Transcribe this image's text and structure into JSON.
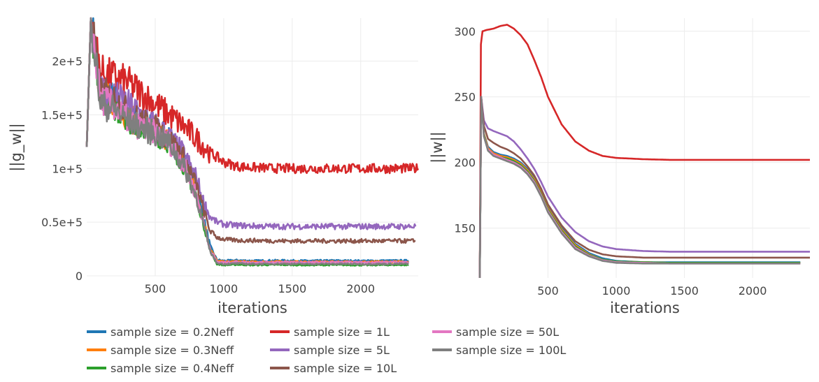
{
  "chart_data": [
    {
      "type": "line",
      "title": "",
      "xlabel": "iterations",
      "ylabel": "||g_w||",
      "xlim": [
        0,
        2420
      ],
      "ylim": [
        0,
        240000
      ],
      "xticks": [
        500,
        1000,
        1500,
        2000
      ],
      "xtick_labels": [
        "500",
        "1000",
        "1500",
        "2000"
      ],
      "yticks": [
        0,
        50000,
        100000,
        150000,
        200000
      ],
      "ytick_labels": [
        "0",
        "0.5e+5",
        "1e+5",
        "1.5e+5",
        "2e+5"
      ],
      "grid": true,
      "series": [
        {
          "name": "sample size = 0.2Neff",
          "color": "#1f77b4",
          "x": [
            0,
            30,
            100,
            200,
            300,
            400,
            500,
            600,
            700,
            800,
            850,
            900,
            950,
            1000,
            1100,
            1200,
            1400,
            1600,
            1800,
            2000,
            2200,
            2350
          ],
          "values": [
            120000,
            240000,
            175000,
            165000,
            150000,
            142000,
            137000,
            128000,
            110000,
            80000,
            55000,
            28000,
            15000,
            14000,
            14500,
            14000,
            14300,
            14000,
            14200,
            14000,
            14100,
            14200
          ]
        },
        {
          "name": "sample size = 0.3Neff",
          "color": "#ff7f0e",
          "x": [
            0,
            30,
            100,
            200,
            300,
            400,
            500,
            600,
            700,
            800,
            850,
            900,
            950,
            1000,
            1100,
            1200,
            1400,
            1600,
            1800,
            2000,
            2200,
            2350
          ],
          "values": [
            120000,
            240000,
            172000,
            162000,
            148000,
            140000,
            135000,
            127000,
            108000,
            78000,
            53000,
            26000,
            14000,
            13000,
            13500,
            13000,
            13300,
            13000,
            13200,
            13000,
            13100,
            13200
          ]
        },
        {
          "name": "sample size = 0.4Neff",
          "color": "#2ca02c",
          "x": [
            0,
            30,
            100,
            200,
            300,
            400,
            500,
            600,
            700,
            800,
            850,
            900,
            950,
            1000,
            1100,
            1200,
            1400,
            1600,
            1800,
            2000,
            2200,
            2350
          ],
          "values": [
            120000,
            240000,
            170000,
            160000,
            146000,
            138000,
            133000,
            125000,
            105000,
            75000,
            50000,
            24000,
            11000,
            10000,
            10500,
            10000,
            10300,
            10000,
            10200,
            10000,
            10100,
            10200
          ]
        },
        {
          "name": "sample size = 1L",
          "color": "#d62728",
          "x": [
            0,
            30,
            100,
            200,
            300,
            400,
            500,
            600,
            700,
            800,
            900,
            1000,
            1100,
            1200,
            1400,
            1600,
            1800,
            2000,
            2200,
            2420
          ],
          "values": [
            120000,
            240000,
            190000,
            185000,
            180000,
            170000,
            160000,
            150000,
            140000,
            128000,
            115000,
            106000,
            102000,
            101000,
            100000,
            100000,
            100000,
            100000,
            100000,
            100000
          ]
        },
        {
          "name": "sample size = 5L",
          "color": "#9467bd",
          "x": [
            0,
            30,
            100,
            200,
            300,
            400,
            500,
            600,
            700,
            800,
            850,
            900,
            950,
            1000,
            1100,
            1200,
            1400,
            1600,
            1800,
            2000,
            2200,
            2400
          ],
          "values": [
            120000,
            240000,
            175000,
            168000,
            160000,
            150000,
            140000,
            130000,
            115000,
            92000,
            70000,
            55000,
            50000,
            48000,
            47000,
            46500,
            46000,
            46000,
            46000,
            46000,
            46000,
            46000
          ]
        },
        {
          "name": "sample size = 10L",
          "color": "#8c564b",
          "x": [
            0,
            30,
            100,
            200,
            300,
            400,
            500,
            600,
            700,
            800,
            850,
            900,
            950,
            1000,
            1100,
            1200,
            1400,
            1600,
            1800,
            2000,
            2200,
            2400
          ],
          "values": [
            120000,
            240000,
            172000,
            165000,
            152000,
            144000,
            138000,
            128000,
            112000,
            85000,
            62000,
            42000,
            36000,
            34000,
            33000,
            33000,
            32500,
            32500,
            32500,
            32500,
            32500,
            32500
          ]
        },
        {
          "name": "sample size = 50L",
          "color": "#e377c2",
          "x": [
            0,
            30,
            100,
            200,
            300,
            400,
            500,
            600,
            700,
            800,
            850,
            900,
            950,
            1000,
            1100,
            1200,
            1400,
            1600,
            1800,
            2000,
            2200,
            2350
          ],
          "values": [
            120000,
            240000,
            165000,
            158000,
            145000,
            138000,
            133000,
            125000,
            106000,
            76000,
            51000,
            25000,
            13000,
            12500,
            13000,
            12500,
            12800,
            12500,
            12700,
            12500,
            12600,
            12700
          ]
        },
        {
          "name": "sample size = 100L",
          "color": "#7f7f7f",
          "x": [
            0,
            30,
            100,
            200,
            300,
            400,
            500,
            600,
            700,
            800,
            850,
            900,
            950,
            1000,
            1100,
            1200,
            1400,
            1600,
            1800,
            2000,
            2200,
            2350
          ],
          "values": [
            120000,
            240000,
            160000,
            155000,
            145000,
            138000,
            132000,
            124000,
            104000,
            74000,
            49000,
            23000,
            12000,
            11000,
            11500,
            11000,
            11300,
            11000,
            11200,
            11000,
            11100,
            11200
          ]
        }
      ]
    },
    {
      "type": "line",
      "title": "",
      "xlabel": "iterations",
      "ylabel": "||w||",
      "xlim": [
        0,
        2420
      ],
      "ylim": [
        112,
        310
      ],
      "xticks": [
        500,
        1000,
        1500,
        2000
      ],
      "xtick_labels": [
        "500",
        "1000",
        "1500",
        "2000"
      ],
      "yticks": [
        150,
        200,
        250,
        300
      ],
      "ytick_labels": [
        "150",
        "200",
        "250",
        "300"
      ],
      "grid": true,
      "series": [
        {
          "name": "sample size = 0.2Neff",
          "color": "#1f77b4",
          "x": [
            0,
            10,
            30,
            60,
            100,
            150,
            200,
            250,
            300,
            350,
            400,
            450,
            500,
            600,
            700,
            800,
            900,
            1000,
            1200,
            1400,
            1600,
            1800,
            2000,
            2200,
            2350
          ],
          "values": [
            112,
            250,
            222,
            212,
            208,
            206,
            205,
            203,
            200,
            195,
            188,
            178,
            166,
            150,
            138,
            131,
            127,
            125,
            124,
            124,
            124,
            124,
            124,
            124,
            124
          ]
        },
        {
          "name": "sample size = 0.3Neff",
          "color": "#ff7f0e",
          "x": [
            0,
            10,
            30,
            60,
            100,
            150,
            200,
            250,
            300,
            350,
            400,
            450,
            500,
            600,
            700,
            800,
            900,
            1000,
            1200,
            1400,
            1600,
            1800,
            2000,
            2200,
            2350
          ],
          "values": [
            112,
            250,
            222,
            211,
            207,
            205,
            204,
            202,
            199,
            194,
            187,
            177,
            165,
            149,
            137,
            130,
            126,
            124.5,
            124,
            123.5,
            123.5,
            123.5,
            123.5,
            123.5,
            123.5
          ]
        },
        {
          "name": "sample size = 0.4Neff",
          "color": "#2ca02c",
          "x": [
            0,
            10,
            30,
            60,
            100,
            150,
            200,
            250,
            300,
            350,
            400,
            450,
            500,
            600,
            700,
            800,
            900,
            1000,
            1200,
            1400,
            1600,
            1800,
            2000,
            2200,
            2350
          ],
          "values": [
            112,
            250,
            221,
            210,
            206,
            204,
            203,
            201,
            198,
            193,
            186,
            176,
            164,
            148,
            136,
            129.5,
            126,
            124.5,
            124,
            123.5,
            123.5,
            123.5,
            123.5,
            123.5,
            123.5
          ]
        },
        {
          "name": "sample size = 1L",
          "color": "#d62728",
          "x": [
            0,
            8,
            20,
            50,
            100,
            150,
            200,
            250,
            300,
            350,
            400,
            450,
            500,
            600,
            700,
            800,
            900,
            1000,
            1200,
            1400,
            1600,
            1800,
            2000,
            2200,
            2420
          ],
          "values": [
            112,
            290,
            300,
            301,
            302,
            304,
            305,
            302,
            297,
            290,
            278,
            265,
            250,
            229,
            216,
            209,
            205,
            203.5,
            202.5,
            202,
            202,
            202,
            202,
            202,
            202
          ]
        },
        {
          "name": "sample size = 5L",
          "color": "#9467bd",
          "x": [
            0,
            10,
            30,
            60,
            100,
            150,
            200,
            250,
            300,
            350,
            400,
            450,
            500,
            600,
            700,
            800,
            900,
            1000,
            1200,
            1400,
            1600,
            1800,
            2000,
            2200,
            2420
          ],
          "values": [
            112,
            250,
            232,
            226,
            224,
            222,
            220,
            216,
            210,
            203,
            195,
            185,
            174,
            158,
            147,
            140,
            136,
            134,
            132.5,
            132,
            132,
            132,
            132,
            132,
            132
          ]
        },
        {
          "name": "sample size = 10L",
          "color": "#8c564b",
          "x": [
            0,
            10,
            30,
            60,
            100,
            150,
            200,
            250,
            300,
            350,
            400,
            450,
            500,
            600,
            700,
            800,
            900,
            1000,
            1200,
            1400,
            1600,
            1800,
            2000,
            2200,
            2420
          ],
          "values": [
            112,
            250,
            228,
            218,
            215,
            212,
            210,
            207,
            203,
            197,
            190,
            180,
            168,
            152,
            140,
            133.5,
            130,
            128.5,
            127.5,
            127.5,
            127.5,
            127.5,
            127.5,
            127.5,
            127.5
          ]
        },
        {
          "name": "sample size = 50L",
          "color": "#e377c2",
          "x": [
            0,
            10,
            30,
            60,
            100,
            150,
            200,
            250,
            300,
            350,
            400,
            450,
            500,
            600,
            700,
            800,
            900,
            1000,
            1200,
            1400,
            1600,
            1800,
            2000,
            2200,
            2350
          ],
          "values": [
            112,
            250,
            220,
            210,
            206,
            204,
            202,
            200,
            197,
            192,
            185,
            175,
            163,
            147,
            135,
            129,
            125.5,
            124,
            123.5,
            123,
            123,
            123,
            123,
            123,
            123
          ]
        },
        {
          "name": "sample size = 100L",
          "color": "#7f7f7f",
          "x": [
            0,
            10,
            30,
            60,
            100,
            150,
            200,
            250,
            300,
            350,
            400,
            450,
            500,
            600,
            700,
            800,
            900,
            1000,
            1200,
            1400,
            1600,
            1800,
            2000,
            2200,
            2350
          ],
          "values": [
            112,
            250,
            220,
            209,
            205,
            203,
            201,
            199,
            196,
            191,
            184,
            174,
            162,
            146,
            134,
            128.5,
            125,
            123.5,
            123,
            123,
            123,
            123,
            123,
            123,
            123
          ]
        }
      ]
    }
  ],
  "legend": {
    "placement": "bottom",
    "items": [
      "sample size = 0.2Neff",
      "sample size = 1L",
      "sample size = 50L",
      "sample size = 0.3Neff",
      "sample size = 5L",
      "sample size = 100L",
      "sample size = 0.4Neff",
      "sample size = 10L"
    ],
    "colors": [
      "#1f77b4",
      "#d62728",
      "#e377c2",
      "#ff7f0e",
      "#9467bd",
      "#7f7f7f",
      "#2ca02c",
      "#8c564b"
    ]
  }
}
